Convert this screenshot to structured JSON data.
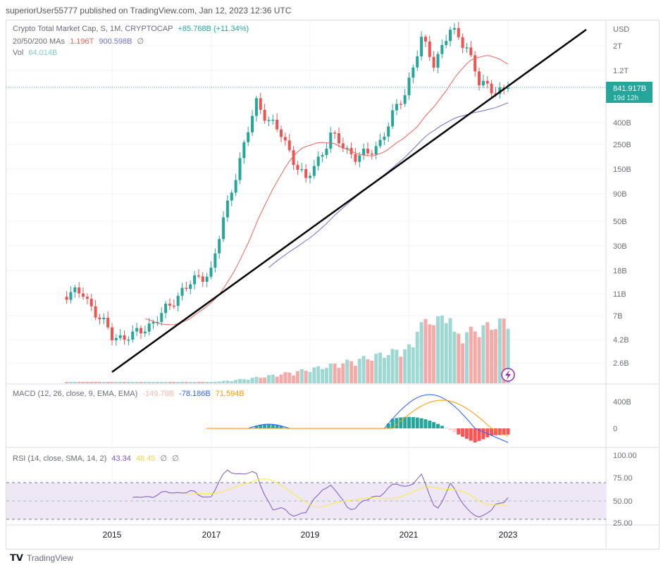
{
  "header": {
    "text": "superiorUser55777 published on TradingView.com, Jan 12, 2023 12:36 UTC"
  },
  "legend": {
    "symbol": "Crypto Total Market Cap, S, 1M, CRYPTOCAP",
    "change": "+85.768B (+11.34%)",
    "ma_label": "20/50/200 MAs",
    "ma1": "1.196T",
    "ma2": "900.598B",
    "ma3": "∅",
    "vol_label": "Vol",
    "vol": "64.014B"
  },
  "price_axis": {
    "currency": "USD",
    "ticks": [
      "2T",
      "1.2T",
      "400B",
      "250B",
      "150B",
      "90B",
      "50B",
      "30B",
      "18B",
      "11B",
      "7B",
      "4.2B",
      "2.6B"
    ],
    "price_label": "841.917B",
    "countdown": "19d 12h"
  },
  "macd": {
    "label": "MACD (12, 26, close, 9, EMA, EMA)",
    "hist": "-149.78B",
    "macd": "-78.186B",
    "signal": "71.594B",
    "ticks": [
      "400B",
      "0"
    ]
  },
  "rsi": {
    "label": "RSI (14, close, SMA, 14, 2)",
    "value": "43.34",
    "ma": "48.45",
    "u1": "∅",
    "u2": "∅",
    "ticks": [
      "100.00",
      "75.00",
      "50.00",
      "25.00"
    ]
  },
  "time_axis": {
    "ticks": [
      "2015",
      "2017",
      "2019",
      "2021",
      "2023"
    ]
  },
  "footer": {
    "brand": "TradingView"
  },
  "colors": {
    "up": "#26a69a",
    "down": "#ef5350",
    "ma_fast": "#f0625c",
    "ma_slow": "#6f6fd1",
    "macd": "#2962ff",
    "signal": "#ff9800",
    "rsi": "#7e57c2",
    "rsi_ma": "#ffeb3b",
    "rsi_band": "#ede7f6"
  },
  "chart_data": {
    "type": "candlestick",
    "title": "Crypto Total Market Cap, S, 1M, CRYPTOCAP",
    "y_scale": "log",
    "x_range": [
      "2014-01",
      "2023-01"
    ],
    "approximate_close_path_usd": [
      {
        "date": "2014-01",
        "value": 11000000000
      },
      {
        "date": "2014-06",
        "value": 11000000000
      },
      {
        "date": "2015-01",
        "value": 4500000000
      },
      {
        "date": "2015-06",
        "value": 4500000000
      },
      {
        "date": "2016-01",
        "value": 7000000000
      },
      {
        "date": "2016-06",
        "value": 12000000000
      },
      {
        "date": "2017-01",
        "value": 18000000000
      },
      {
        "date": "2017-06",
        "value": 100000000000
      },
      {
        "date": "2017-12",
        "value": 600000000000
      },
      {
        "date": "2018-06",
        "value": 300000000000
      },
      {
        "date": "2018-12",
        "value": 115000000000
      },
      {
        "date": "2019-06",
        "value": 300000000000
      },
      {
        "date": "2019-12",
        "value": 195000000000
      },
      {
        "date": "2020-03",
        "value": 200000000000
      },
      {
        "date": "2020-06",
        "value": 270000000000
      },
      {
        "date": "2020-12",
        "value": 750000000000
      },
      {
        "date": "2021-04",
        "value": 2200000000000
      },
      {
        "date": "2021-07",
        "value": 1400000000000
      },
      {
        "date": "2021-11",
        "value": 2700000000000
      },
      {
        "date": "2022-03",
        "value": 2000000000000
      },
      {
        "date": "2022-06",
        "value": 880000000000
      },
      {
        "date": "2022-12",
        "value": 760000000000
      },
      {
        "date": "2023-01",
        "value": 841917000000
      }
    ],
    "trendline": [
      {
        "date": "2015-01",
        "value": 2300000000
      },
      {
        "date": "2024-06",
        "value": 3000000000000
      }
    ],
    "last_price": "841.917B"
  }
}
